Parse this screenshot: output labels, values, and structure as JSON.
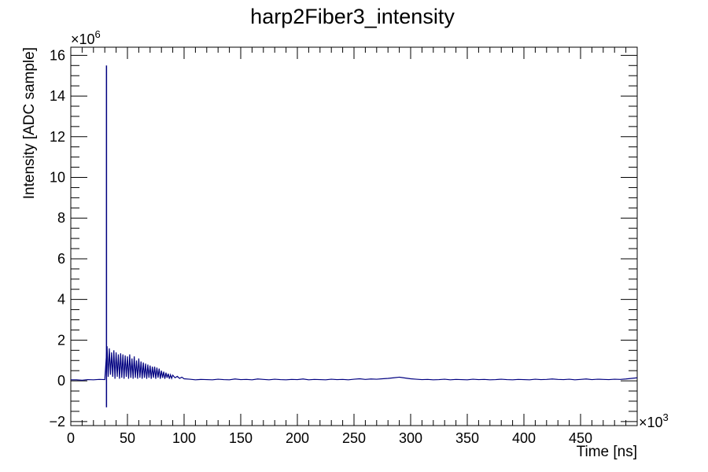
{
  "chart_data": {
    "type": "line",
    "title": "harp2Fiber3_intensity",
    "xlabel": "Time [ns]",
    "ylabel": "Intensity [ADC sample]",
    "x_multiplier_label": "×10",
    "x_multiplier_exp": "3",
    "y_multiplier_label": "×10",
    "y_multiplier_exp": "6",
    "xlim": [
      0,
      500
    ],
    "ylim": [
      -2.2,
      16.4
    ],
    "x_ticks": [
      0,
      50,
      100,
      150,
      200,
      250,
      300,
      350,
      400,
      450
    ],
    "x_tick_labels": [
      "0",
      "50",
      "100",
      "150",
      "200",
      "250",
      "300",
      "350",
      "400",
      "450"
    ],
    "y_ticks": [
      -2,
      0,
      2,
      4,
      6,
      8,
      10,
      12,
      14,
      16
    ],
    "y_tick_labels": [
      "−2",
      "0",
      "2",
      "4",
      "6",
      "8",
      "10",
      "12",
      "14",
      "16"
    ],
    "grid": false,
    "line_color": "#000080",
    "series": [
      {
        "spike": {
          "x": 31.5,
          "y_max": 15.5,
          "y_min": -1.3
        },
        "points": [
          [
            0,
            0.05
          ],
          [
            5,
            0.05
          ],
          [
            10,
            0.03
          ],
          [
            15,
            0.06
          ],
          [
            20,
            0.05
          ],
          [
            25,
            0.07
          ],
          [
            30,
            0.06
          ],
          [
            32,
            1.7
          ],
          [
            33,
            0.2
          ],
          [
            34,
            1.6
          ],
          [
            35,
            0.3
          ],
          [
            36,
            1.4
          ],
          [
            37,
            0.2
          ],
          [
            38,
            1.5
          ],
          [
            39,
            0.1
          ],
          [
            40,
            1.4
          ],
          [
            41,
            0.2
          ],
          [
            42,
            1.3
          ],
          [
            43,
            0.1
          ],
          [
            44,
            1.35
          ],
          [
            45,
            0.15
          ],
          [
            46,
            1.3
          ],
          [
            47,
            0.1
          ],
          [
            48,
            1.25
          ],
          [
            49,
            0.2
          ],
          [
            50,
            1.2
          ],
          [
            51,
            0.1
          ],
          [
            52,
            1.3
          ],
          [
            53,
            0.15
          ],
          [
            54,
            1.1
          ],
          [
            55,
            0.1
          ],
          [
            56,
            1.2
          ],
          [
            57,
            0.15
          ],
          [
            58,
            1.0
          ],
          [
            59,
            0.1
          ],
          [
            60,
            1.1
          ],
          [
            61,
            0.15
          ],
          [
            62,
            0.95
          ],
          [
            63,
            0.1
          ],
          [
            64,
            0.9
          ],
          [
            65,
            0.15
          ],
          [
            66,
            0.85
          ],
          [
            67,
            0.1
          ],
          [
            68,
            0.8
          ],
          [
            69,
            0.15
          ],
          [
            70,
            0.75
          ],
          [
            71,
            0.1
          ],
          [
            72,
            0.7
          ],
          [
            73,
            0.15
          ],
          [
            74,
            0.7
          ],
          [
            75,
            0.1
          ],
          [
            76,
            0.65
          ],
          [
            77,
            0.15
          ],
          [
            78,
            0.6
          ],
          [
            79,
            0.1
          ],
          [
            80,
            0.5
          ],
          [
            81,
            0.15
          ],
          [
            82,
            0.45
          ],
          [
            83,
            0.1
          ],
          [
            84,
            0.4
          ],
          [
            85,
            0.15
          ],
          [
            86,
            0.35
          ],
          [
            87,
            0.1
          ],
          [
            88,
            0.3
          ],
          [
            89,
            0.12
          ],
          [
            90,
            0.28
          ],
          [
            92,
            0.15
          ],
          [
            94,
            0.22
          ],
          [
            96,
            0.12
          ],
          [
            98,
            0.18
          ],
          [
            100,
            0.1
          ],
          [
            105,
            0.08
          ],
          [
            110,
            0.05
          ],
          [
            115,
            0.07
          ],
          [
            120,
            0.06
          ],
          [
            125,
            0.05
          ],
          [
            130,
            0.08
          ],
          [
            135,
            0.06
          ],
          [
            140,
            0.05
          ],
          [
            145,
            0.09
          ],
          [
            150,
            0.06
          ],
          [
            155,
            0.07
          ],
          [
            160,
            0.05
          ],
          [
            165,
            0.09
          ],
          [
            170,
            0.07
          ],
          [
            175,
            0.05
          ],
          [
            180,
            0.08
          ],
          [
            185,
            0.06
          ],
          [
            190,
            0.05
          ],
          [
            195,
            0.07
          ],
          [
            200,
            0.06
          ],
          [
            205,
            0.09
          ],
          [
            210,
            0.05
          ],
          [
            215,
            0.07
          ],
          [
            220,
            0.06
          ],
          [
            225,
            0.05
          ],
          [
            230,
            0.08
          ],
          [
            235,
            0.06
          ],
          [
            240,
            0.07
          ],
          [
            245,
            0.05
          ],
          [
            250,
            0.08
          ],
          [
            255,
            0.1
          ],
          [
            260,
            0.07
          ],
          [
            265,
            0.09
          ],
          [
            270,
            0.08
          ],
          [
            275,
            0.1
          ],
          [
            280,
            0.12
          ],
          [
            285,
            0.15
          ],
          [
            290,
            0.18
          ],
          [
            295,
            0.14
          ],
          [
            300,
            0.1
          ],
          [
            305,
            0.08
          ],
          [
            310,
            0.06
          ],
          [
            315,
            0.07
          ],
          [
            320,
            0.05
          ],
          [
            325,
            0.06
          ],
          [
            330,
            0.08
          ],
          [
            335,
            0.05
          ],
          [
            340,
            0.07
          ],
          [
            345,
            0.06
          ],
          [
            350,
            0.05
          ],
          [
            355,
            0.08
          ],
          [
            360,
            0.06
          ],
          [
            365,
            0.07
          ],
          [
            370,
            0.05
          ],
          [
            375,
            0.06
          ],
          [
            380,
            0.08
          ],
          [
            385,
            0.06
          ],
          [
            390,
            0.05
          ],
          [
            395,
            0.07
          ],
          [
            400,
            0.06
          ],
          [
            405,
            0.05
          ],
          [
            410,
            0.08
          ],
          [
            415,
            0.06
          ],
          [
            420,
            0.07
          ],
          [
            425,
            0.09
          ],
          [
            430,
            0.07
          ],
          [
            435,
            0.06
          ],
          [
            440,
            0.08
          ],
          [
            445,
            0.05
          ],
          [
            450,
            0.07
          ],
          [
            455,
            0.09
          ],
          [
            460,
            0.06
          ],
          [
            465,
            0.08
          ],
          [
            470,
            0.07
          ],
          [
            475,
            0.06
          ],
          [
            480,
            0.08
          ],
          [
            485,
            0.07
          ],
          [
            490,
            0.09
          ],
          [
            495,
            0.12
          ],
          [
            500,
            0.15
          ]
        ]
      }
    ]
  }
}
